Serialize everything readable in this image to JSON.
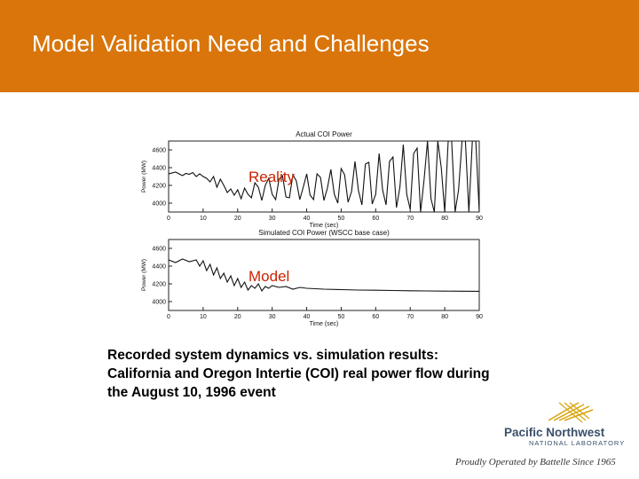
{
  "slide": {
    "title": "Model Validation Need and Challenges",
    "caption_lines": [
      "Recorded system dynamics vs. simulation results:",
      "California and Oregon Intertie (COI) real power flow during",
      "the August 10, 1996 event"
    ],
    "colors": {
      "header": "#d9750a",
      "annotation": "#cc2200"
    }
  },
  "logo": {
    "name": "Pacific Northwest",
    "lab": "NATIONAL LABORATORY",
    "tagline": "Proudly Operated by Battelle Since 1965"
  },
  "chart_data": [
    {
      "type": "line",
      "title": "Actual COI Power",
      "annotation": "Reality",
      "xlabel": "Time (sec)",
      "ylabel": "Power (MW)",
      "xlim": [
        0,
        90
      ],
      "ylim": [
        3900,
        4700
      ],
      "xticks": [
        0,
        10,
        20,
        30,
        40,
        50,
        60,
        70,
        80,
        90
      ],
      "yticks": [
        4000,
        4200,
        4400,
        4600
      ],
      "x": [
        0,
        2,
        4,
        5,
        6,
        7,
        8,
        9,
        10,
        11,
        12,
        13,
        14,
        15,
        16,
        17,
        18,
        19,
        20,
        21,
        22,
        23,
        24,
        25,
        26,
        27,
        28,
        29,
        30,
        31,
        32,
        33,
        34,
        35,
        36,
        37,
        38,
        39,
        40,
        41,
        42,
        43,
        44,
        45,
        46,
        47,
        48,
        49,
        50,
        51,
        52,
        53,
        54,
        55,
        56,
        57,
        58,
        59,
        60,
        61,
        62,
        63,
        64,
        65,
        66,
        67,
        68,
        69,
        70,
        71,
        72,
        73,
        74,
        75,
        76,
        77,
        78,
        79,
        80,
        81,
        82,
        83,
        84,
        85,
        86,
        87,
        88,
        89,
        90
      ],
      "y": [
        4330,
        4350,
        4310,
        4335,
        4325,
        4345,
        4300,
        4330,
        4300,
        4280,
        4240,
        4300,
        4180,
        4270,
        4200,
        4120,
        4160,
        4090,
        4150,
        4050,
        4170,
        4100,
        4060,
        4230,
        4180,
        4030,
        4200,
        4280,
        4100,
        4040,
        4270,
        4310,
        4070,
        4060,
        4320,
        4250,
        4040,
        4180,
        4330,
        4090,
        4040,
        4330,
        4290,
        4030,
        4170,
        4380,
        4100,
        4000,
        4390,
        4320,
        4010,
        4130,
        4470,
        4140,
        3980,
        4440,
        4460,
        3990,
        4100,
        4560,
        4150,
        3980,
        4470,
        4520,
        3950,
        4180,
        4660,
        4100,
        3930,
        4560,
        4620,
        3900,
        4260,
        4700,
        4050,
        3900,
        4700,
        4400,
        3900,
        4700,
        4700,
        3900,
        4150,
        4700,
        4700,
        3900,
        4700,
        4700,
        3900
      ]
    },
    {
      "type": "line",
      "title": "Simulated COI Power (WSCC base case)",
      "annotation": "Model",
      "xlabel": "Time (sec)",
      "ylabel": "Power (MW)",
      "xlim": [
        0,
        90
      ],
      "ylim": [
        3900,
        4700
      ],
      "xticks": [
        0,
        10,
        20,
        30,
        40,
        50,
        60,
        70,
        80,
        90
      ],
      "yticks": [
        4000,
        4200,
        4400,
        4600
      ],
      "x": [
        0,
        2,
        4,
        6,
        8,
        9,
        10,
        11,
        12,
        13,
        14,
        15,
        16,
        17,
        18,
        19,
        20,
        21,
        22,
        23,
        24,
        25,
        26,
        27,
        28,
        29,
        30,
        32,
        34,
        36,
        38,
        40,
        45,
        50,
        55,
        60,
        65,
        70,
        75,
        80,
        85,
        90
      ],
      "y": [
        4470,
        4440,
        4480,
        4450,
        4470,
        4400,
        4460,
        4350,
        4420,
        4300,
        4380,
        4260,
        4320,
        4220,
        4290,
        4180,
        4260,
        4160,
        4220,
        4130,
        4180,
        4150,
        4200,
        4120,
        4170,
        4150,
        4180,
        4160,
        4170,
        4140,
        4160,
        4150,
        4140,
        4135,
        4130,
        4128,
        4125,
        4122,
        4120,
        4118,
        4117,
        4116
      ]
    }
  ]
}
